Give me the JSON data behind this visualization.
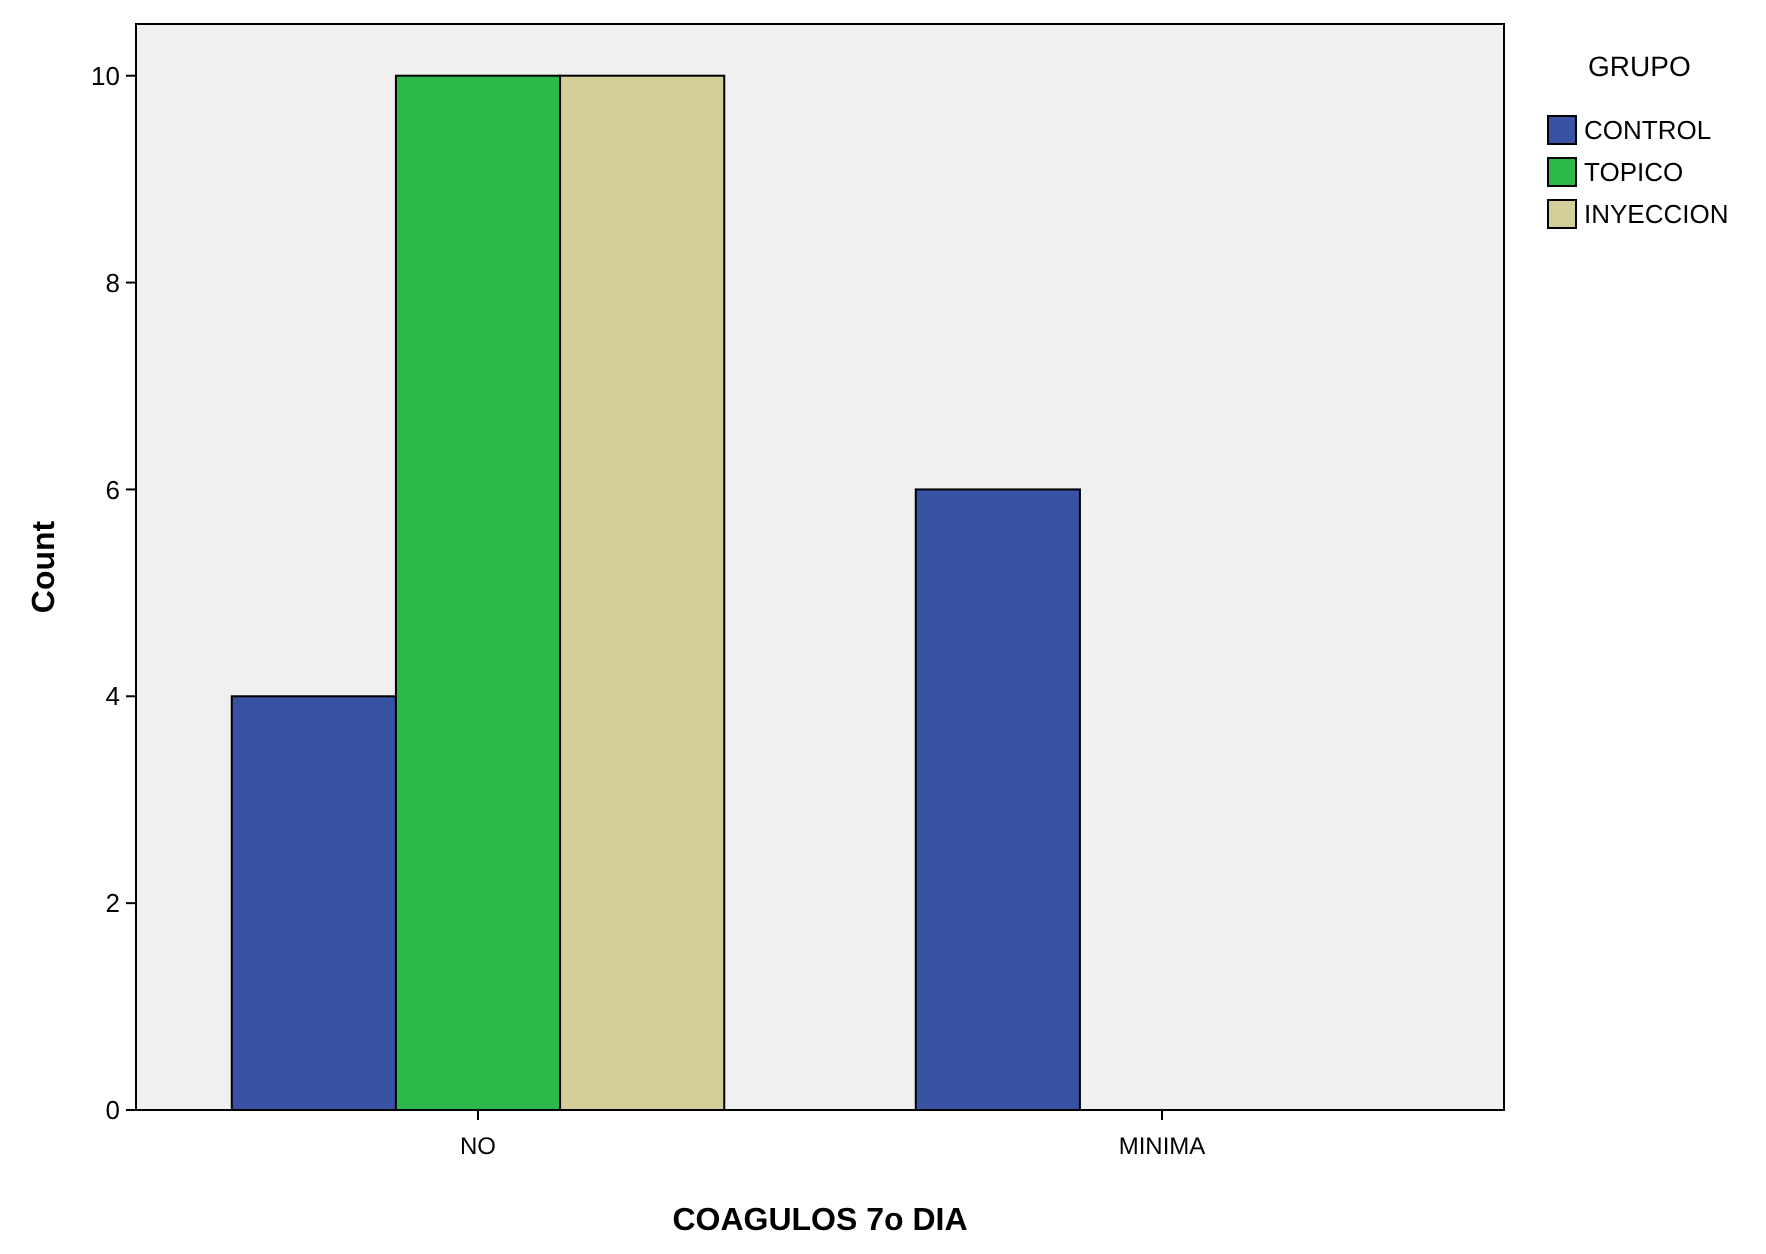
{
  "chart_data": {
    "type": "bar",
    "xlabel": "COAGULOS 7o DIA",
    "ylabel": "Count",
    "legend_title": "GRUPO",
    "categories": [
      "NO",
      "MINIMA"
    ],
    "series": [
      {
        "name": "CONTROL",
        "color": "#3953a4",
        "values": [
          4,
          6
        ]
      },
      {
        "name": "TOPICO",
        "color": "#2db84a",
        "values": [
          10,
          0
        ]
      },
      {
        "name": "INYECCION",
        "color": "#d4cf98",
        "values": [
          10,
          0
        ]
      }
    ],
    "ylim": [
      0,
      10.5
    ],
    "yticks": [
      0,
      2,
      4,
      6,
      8,
      10
    ],
    "grid": false,
    "legend": "top right"
  }
}
